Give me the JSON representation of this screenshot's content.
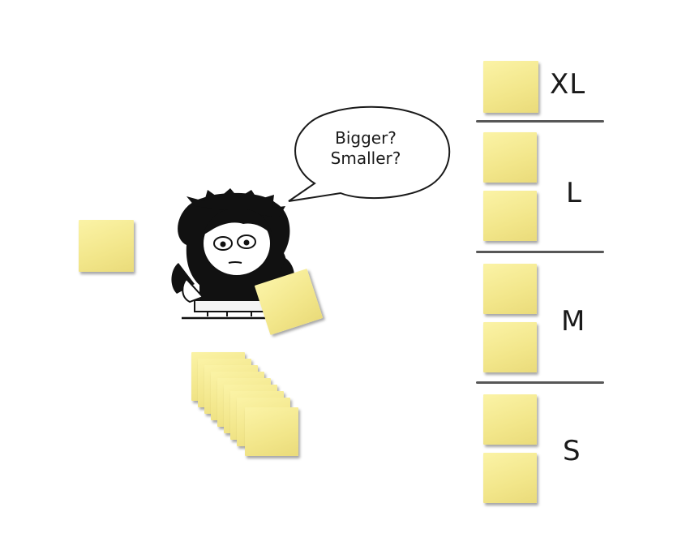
{
  "speech_bubble": {
    "line1": "Bigger?",
    "line2": "Smaller?"
  },
  "size_categories": [
    {
      "label": "XL",
      "note_count": 1
    },
    {
      "label": "L",
      "note_count": 2
    },
    {
      "label": "M",
      "note_count": 2
    },
    {
      "label": "S",
      "note_count": 2
    }
  ],
  "colors": {
    "sticky_note": "#f4e98e",
    "ink": "#1a1a1a"
  }
}
